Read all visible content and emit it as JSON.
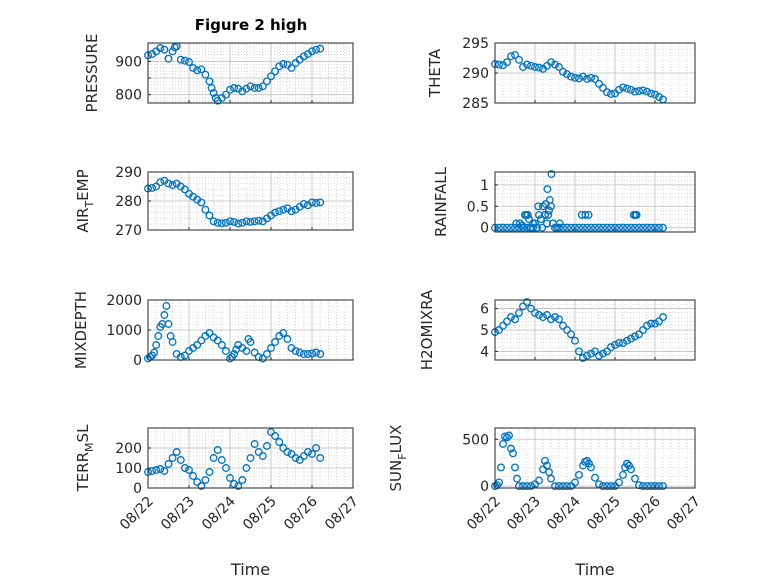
{
  "figure": {
    "title": "Figure 2 high"
  },
  "colors": {
    "marker": "#0072bd",
    "axis": "#262626",
    "grid": "#bfbfbf"
  },
  "chart_data": [
    {
      "type": "scatter",
      "id": "pressure",
      "ylabel": "PRESSURE",
      "ylim": [
        775,
        955
      ],
      "yticks": [
        800,
        850,
        900
      ],
      "ytick_labels": [
        "800",
        "",
        "900"
      ],
      "xlim": [
        0,
        5
      ],
      "grid": true,
      "title": "Figure 2 high",
      "x": [
        0.0,
        0.1,
        0.2,
        0.3,
        0.4,
        0.5,
        0.6,
        0.65,
        0.7,
        0.8,
        0.9,
        1.0,
        1.1,
        1.2,
        1.3,
        1.4,
        1.5,
        1.55,
        1.6,
        1.65,
        1.7,
        1.8,
        1.9,
        2.0,
        2.1,
        2.2,
        2.3,
        2.4,
        2.5,
        2.6,
        2.7,
        2.8,
        2.9,
        3.0,
        3.1,
        3.2,
        3.3,
        3.4,
        3.5,
        3.6,
        3.7,
        3.8,
        3.9,
        4.0,
        4.1,
        4.2
      ],
      "y": [
        918,
        922,
        930,
        940,
        935,
        908,
        930,
        942,
        945,
        905,
        902,
        898,
        880,
        873,
        876,
        860,
        840,
        820,
        805,
        790,
        782,
        790,
        800,
        815,
        820,
        818,
        810,
        818,
        825,
        820,
        820,
        825,
        840,
        855,
        870,
        885,
        892,
        890,
        880,
        895,
        905,
        915,
        922,
        930,
        935,
        938
      ]
    },
    {
      "type": "scatter",
      "id": "theta",
      "ylabel": "THETA",
      "ylim": [
        285,
        295
      ],
      "yticks": [
        285,
        290,
        295
      ],
      "ytick_labels": [
        "285",
        "290",
        "295"
      ],
      "xlim": [
        0,
        5
      ],
      "grid": true,
      "x": [
        0.0,
        0.1,
        0.2,
        0.3,
        0.4,
        0.5,
        0.6,
        0.7,
        0.8,
        0.9,
        1.0,
        1.1,
        1.2,
        1.3,
        1.4,
        1.5,
        1.6,
        1.7,
        1.8,
        1.9,
        2.0,
        2.1,
        2.2,
        2.3,
        2.4,
        2.5,
        2.6,
        2.7,
        2.8,
        2.9,
        3.0,
        3.1,
        3.2,
        3.3,
        3.4,
        3.5,
        3.6,
        3.7,
        3.8,
        3.9,
        4.0,
        4.1,
        4.2
      ],
      "y": [
        291.5,
        291.4,
        291.3,
        291.8,
        292.8,
        293.0,
        292.2,
        291.0,
        291.4,
        291.2,
        291.0,
        290.9,
        290.7,
        291.2,
        291.8,
        291.4,
        291.0,
        290.2,
        289.8,
        289.4,
        289.2,
        289.1,
        289.4,
        289.0,
        289.2,
        289.0,
        288.2,
        287.5,
        286.8,
        286.5,
        286.6,
        287.2,
        287.6,
        287.4,
        287.2,
        286.9,
        287.0,
        287.1,
        286.9,
        286.6,
        286.4,
        286.0,
        285.6
      ]
    },
    {
      "type": "scatter",
      "id": "air_temp",
      "ylabel": "AIR_TEMP",
      "ylim": [
        270,
        290
      ],
      "yticks": [
        270,
        280,
        290
      ],
      "ytick_labels": [
        "270",
        "280",
        "290"
      ],
      "xlim": [
        0,
        5
      ],
      "grid": true,
      "x": [
        0.0,
        0.1,
        0.2,
        0.3,
        0.4,
        0.5,
        0.6,
        0.7,
        0.8,
        0.9,
        1.0,
        1.1,
        1.2,
        1.3,
        1.4,
        1.5,
        1.6,
        1.7,
        1.8,
        1.9,
        2.0,
        2.1,
        2.2,
        2.3,
        2.4,
        2.5,
        2.6,
        2.7,
        2.8,
        2.9,
        3.0,
        3.1,
        3.2,
        3.3,
        3.4,
        3.5,
        3.6,
        3.7,
        3.8,
        3.9,
        4.0,
        4.1,
        4.2
      ],
      "y": [
        284.3,
        284.5,
        285.0,
        286.5,
        287.0,
        286.0,
        285.5,
        286.0,
        285.0,
        284.0,
        282.5,
        281.5,
        280.5,
        279.5,
        277.0,
        275.0,
        273.0,
        272.5,
        272.3,
        272.5,
        273.0,
        272.8,
        272.2,
        272.5,
        273.0,
        272.8,
        273.0,
        273.2,
        273.0,
        274.0,
        275.0,
        276.0,
        276.5,
        277.0,
        277.5,
        276.5,
        277.0,
        278.0,
        279.0,
        278.5,
        279.5,
        279.3,
        279.5
      ]
    },
    {
      "type": "scatter",
      "id": "rainfall",
      "ylabel": "RAINFALL",
      "ylim": [
        -0.1,
        1.3
      ],
      "yticks": [
        0,
        0.5,
        1
      ],
      "ytick_labels": [
        "0",
        "0.5",
        "1"
      ],
      "xlim": [
        0,
        5
      ],
      "grid": true,
      "x": [
        0.0,
        0.1,
        0.2,
        0.3,
        0.4,
        0.5,
        0.6,
        0.7,
        0.75,
        0.8,
        0.85,
        0.9,
        0.95,
        1.0,
        1.05,
        1.1,
        1.15,
        1.2,
        1.25,
        1.3,
        1.35,
        1.4,
        1.45,
        1.5,
        1.55,
        1.6,
        1.7,
        1.8,
        1.9,
        2.0,
        2.1,
        2.2,
        2.3,
        2.4,
        2.5,
        2.6,
        2.7,
        2.8,
        2.9,
        3.0,
        3.1,
        3.2,
        3.3,
        3.4,
        3.5,
        3.6,
        3.7,
        3.8,
        3.9,
        4.0,
        4.1,
        4.2,
        1.27,
        1.31,
        1.37,
        1.41,
        1.62,
        2.17,
        2.26,
        2.34,
        0.95,
        1.08,
        1.18,
        1.25,
        1.33,
        0.53,
        0.62,
        0.68,
        0.78,
        0.82,
        0.88,
        3.47,
        3.51,
        3.54
      ],
      "y": [
        0,
        0,
        0,
        0,
        0,
        0,
        0,
        0,
        0.3,
        0,
        0.2,
        0,
        0.1,
        0.1,
        0,
        0.3,
        0.2,
        0.5,
        0.3,
        0.1,
        0.4,
        0.5,
        0.1,
        0,
        0,
        0,
        0,
        0,
        0,
        0,
        0,
        0,
        0,
        0,
        0,
        0,
        0,
        0,
        0,
        0,
        0,
        0,
        0,
        0,
        0,
        0,
        0,
        0,
        0,
        0,
        0,
        0,
        0.55,
        0.9,
        0.65,
        1.25,
        0.1,
        0.3,
        0.3,
        0.3,
        0,
        0.5,
        0,
        0.3,
        0.3,
        0.1,
        0.1,
        0.05,
        0.3,
        0.3,
        0,
        0.3,
        0.3,
        0.3
      ]
    },
    {
      "type": "scatter",
      "id": "mixdepth",
      "ylabel": "MIXDEPTH",
      "ylim": [
        0,
        2000
      ],
      "yticks": [
        0,
        1000,
        2000
      ],
      "ytick_labels": [
        "0",
        "1000",
        "2000"
      ],
      "xlim": [
        0,
        5
      ],
      "grid": true,
      "x": [
        0.0,
        0.05,
        0.1,
        0.15,
        0.2,
        0.25,
        0.3,
        0.35,
        0.4,
        0.45,
        0.5,
        0.55,
        0.6,
        0.7,
        0.8,
        0.9,
        1.0,
        1.1,
        1.2,
        1.3,
        1.4,
        1.5,
        1.6,
        1.7,
        1.8,
        1.9,
        2.0,
        2.05,
        2.1,
        2.15,
        2.2,
        2.3,
        2.4,
        2.45,
        2.5,
        2.6,
        2.7,
        2.8,
        2.9,
        3.0,
        3.1,
        3.2,
        3.3,
        3.4,
        3.5,
        3.6,
        3.7,
        3.8,
        3.9,
        4.0,
        4.1,
        4.2
      ],
      "y": [
        50,
        100,
        150,
        250,
        500,
        800,
        1100,
        1200,
        1500,
        1800,
        1200,
        800,
        600,
        200,
        100,
        150,
        300,
        400,
        500,
        650,
        800,
        900,
        750,
        650,
        500,
        300,
        50,
        100,
        200,
        350,
        500,
        400,
        300,
        700,
        600,
        250,
        100,
        50,
        200,
        400,
        600,
        800,
        900,
        700,
        400,
        300,
        250,
        200,
        200,
        220,
        250,
        200
      ]
    },
    {
      "type": "scatter",
      "id": "h2omixra",
      "ylabel": "H2OMIXRA",
      "ylim": [
        3.6,
        6.4
      ],
      "yticks": [
        4,
        5,
        6
      ],
      "ytick_labels": [
        "4",
        "5",
        "6"
      ],
      "xlim": [
        0,
        5
      ],
      "grid": true,
      "x": [
        0.0,
        0.1,
        0.2,
        0.3,
        0.4,
        0.5,
        0.6,
        0.7,
        0.8,
        0.9,
        1.0,
        1.1,
        1.2,
        1.3,
        1.4,
        1.5,
        1.6,
        1.7,
        1.8,
        1.9,
        2.0,
        2.1,
        2.2,
        2.3,
        2.4,
        2.5,
        2.6,
        2.7,
        2.8,
        2.9,
        3.0,
        3.1,
        3.2,
        3.3,
        3.4,
        3.5,
        3.6,
        3.7,
        3.8,
        3.9,
        4.0,
        4.1,
        4.2
      ],
      "y": [
        4.9,
        5.0,
        5.2,
        5.4,
        5.6,
        5.5,
        5.8,
        6.1,
        6.3,
        6.0,
        5.8,
        5.7,
        5.6,
        5.7,
        5.5,
        5.6,
        5.5,
        5.2,
        5.0,
        4.8,
        4.5,
        4.0,
        3.7,
        3.8,
        3.9,
        4.0,
        3.8,
        3.9,
        4.0,
        4.2,
        4.3,
        4.4,
        4.4,
        4.5,
        4.6,
        4.7,
        4.8,
        5.0,
        5.2,
        5.3,
        5.3,
        5.4,
        5.6
      ]
    },
    {
      "type": "scatter",
      "id": "terr_msl",
      "ylabel": "TERR_MSL",
      "ylim": [
        0,
        300
      ],
      "yticks": [
        0,
        100,
        200
      ],
      "ytick_labels": [
        "0",
        "100",
        "200"
      ],
      "xlim": [
        0,
        5
      ],
      "grid": true,
      "x": [
        0.0,
        0.1,
        0.2,
        0.3,
        0.4,
        0.5,
        0.6,
        0.7,
        0.8,
        0.9,
        1.0,
        1.1,
        1.2,
        1.3,
        1.4,
        1.5,
        1.6,
        1.7,
        1.8,
        1.9,
        2.0,
        2.1,
        2.2,
        2.3,
        2.4,
        2.5,
        2.6,
        2.7,
        2.8,
        2.9,
        3.0,
        3.1,
        3.2,
        3.3,
        3.4,
        3.5,
        3.6,
        3.7,
        3.8,
        3.9,
        4.0,
        4.1,
        4.2
      ],
      "y": [
        80,
        85,
        90,
        95,
        85,
        120,
        150,
        180,
        140,
        100,
        90,
        60,
        30,
        10,
        40,
        80,
        150,
        190,
        140,
        100,
        50,
        20,
        10,
        40,
        100,
        150,
        220,
        180,
        160,
        210,
        280,
        260,
        230,
        200,
        180,
        170,
        150,
        140,
        160,
        180,
        170,
        200,
        150
      ]
    },
    {
      "type": "scatter",
      "id": "sun_flux",
      "ylabel": "SUN_FLUX",
      "ylim": [
        -20,
        620
      ],
      "yticks": [
        0,
        500
      ],
      "ytick_labels": [
        "0",
        "500"
      ],
      "xlim": [
        0,
        5
      ],
      "grid": true,
      "xtick_labels": [
        "08/22",
        "08/23",
        "08/24",
        "08/25",
        "08/26",
        "08/27"
      ],
      "x": [
        0.0,
        0.05,
        0.1,
        0.15,
        0.2,
        0.25,
        0.3,
        0.35,
        0.4,
        0.45,
        0.5,
        0.55,
        0.6,
        0.7,
        0.8,
        0.9,
        1.0,
        1.1,
        1.2,
        1.25,
        1.3,
        1.35,
        1.4,
        1.5,
        1.6,
        1.7,
        1.8,
        1.9,
        2.0,
        2.1,
        2.2,
        2.25,
        2.3,
        2.35,
        2.4,
        2.5,
        2.6,
        2.7,
        2.8,
        2.9,
        3.0,
        3.1,
        3.2,
        3.25,
        3.3,
        3.35,
        3.4,
        3.5,
        3.6,
        3.7,
        3.8,
        3.9,
        4.0,
        4.1,
        4.2
      ],
      "y": [
        0,
        10,
        40,
        200,
        450,
        530,
        520,
        540,
        400,
        350,
        200,
        80,
        0,
        0,
        0,
        0,
        20,
        60,
        180,
        270,
        220,
        150,
        80,
        0,
        0,
        0,
        0,
        0,
        40,
        120,
        220,
        260,
        270,
        240,
        200,
        90,
        20,
        0,
        0,
        0,
        0,
        40,
        120,
        200,
        240,
        220,
        180,
        80,
        10,
        0,
        0,
        0,
        0,
        0,
        0
      ]
    }
  ],
  "x_axis": {
    "label": "Time",
    "ticks": [
      0,
      1,
      2,
      3,
      4,
      5
    ],
    "tick_labels": [
      "08/22",
      "08/23",
      "08/24",
      "08/25",
      "08/26",
      "08/27"
    ]
  },
  "ylabels": {
    "pressure": "PRESSURE",
    "theta": "THETA",
    "air_temp": {
      "main": "AIR",
      "sub": "T",
      "rest": "EMP"
    },
    "rainfall": "RAINFALL",
    "mixdepth": "MIXDEPTH",
    "h2omixra": "H2OMIXRA",
    "terr_msl": {
      "main": "TERR",
      "sub": "M",
      "rest": "SL"
    },
    "sun_flux": {
      "main": "SUN",
      "sub": "F",
      "rest": "LUX"
    }
  }
}
